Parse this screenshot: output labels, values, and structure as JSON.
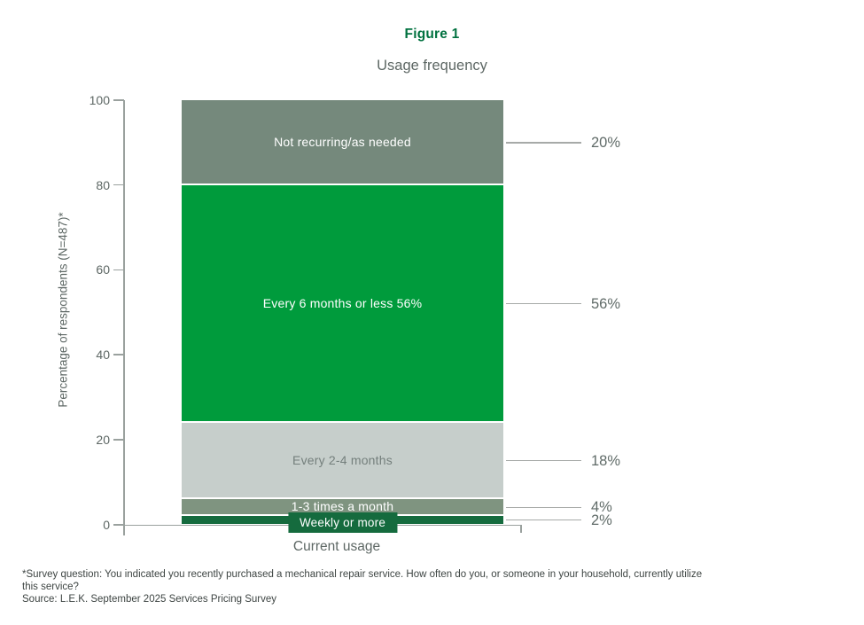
{
  "header": {
    "figure_label": "Figure 1",
    "title": "Usage frequency"
  },
  "chart_data": {
    "type": "bar",
    "stacked": true,
    "figure_label": "Figure 1",
    "title": "Usage frequency",
    "xlabel": "Current usage",
    "ylabel": "Percentage of respondents (N=487)*",
    "ylim": [
      0,
      100
    ],
    "yticks": [
      0,
      20,
      40,
      60,
      80,
      100
    ],
    "grid": false,
    "legend": "none",
    "categories": [
      "Current usage"
    ],
    "series": [
      {
        "name": "Not recurring/as needed",
        "value": 20,
        "color": "#75897c",
        "text_color": "#ffffff",
        "bar_label": "Not recurring/as needed",
        "callout": "20%",
        "badge": false
      },
      {
        "name": "Every 6 months or less",
        "value": 56,
        "color": "#009b3c",
        "text_color": "#ffffff",
        "bar_label": "Every 6 months or less 56%",
        "callout": "56%",
        "badge": false
      },
      {
        "name": "Every 2-4 months",
        "value": 18,
        "color": "#c6cecb",
        "text_color": "#747f7c",
        "bar_label": "Every 2-4 months",
        "callout": "18%",
        "badge": false
      },
      {
        "name": "1-3 times a month",
        "value": 4,
        "color": "#7f9480",
        "text_color": "#ffffff",
        "bar_label": "1-3 times a month",
        "callout": "4%",
        "badge": false
      },
      {
        "name": "Weekly or more",
        "value": 2,
        "color": "#156b3e",
        "text_color": "#ffffff",
        "bar_label": "Weekly or more",
        "callout": "2%",
        "badge": true
      }
    ]
  },
  "footnotes": {
    "survey_question": "*Survey question: You indicated you recently purchased a mechanical repair service. How often do you, or someone in your household, currently utilize this service?",
    "source": "Source: L.E.K. September 2025 Services Pricing Survey"
  },
  "colors": {
    "accent_green": "#00713f",
    "bright_green": "#009b3c",
    "sage_gray": "#75897c",
    "light_gray": "#c6cecb",
    "medium_sage": "#7f9480",
    "dark_green": "#156b3e",
    "text_gray": "#5d6764",
    "callout_text": "#606b68",
    "axis_gray": "#9aa19e",
    "footnote_gray": "#3e4543"
  }
}
